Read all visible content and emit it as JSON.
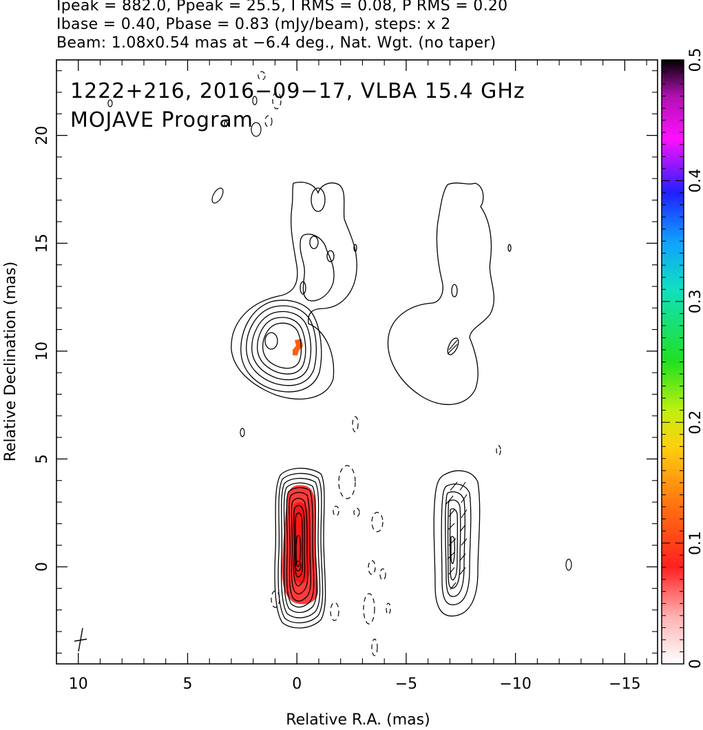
{
  "header": {
    "line1": "Ipeak = 882.0, Ppeak = 25.5, I RMS = 0.08, P RMS = 0.20",
    "line2": "Ibase = 0.40, Pbase = 0.83 (mJy/beam), steps: x 2",
    "line3": "Beam: 1.08x0.54 mas at −6.4 deg., Nat. Wgt. (no taper)"
  },
  "annotation": {
    "line1": "1222+216, 2016−09−17, VLBA 15.4 GHz",
    "line2": "MOJAVE Program"
  },
  "chart_data": {
    "type": "heatmap",
    "title": "",
    "xlabel": "Relative R.A. (mas)",
    "ylabel": "Relative Declination (mas)",
    "xlim": [
      11,
      -16.5
    ],
    "ylim": [
      -4.5,
      23.5
    ],
    "x_ticks": [
      10,
      5,
      0,
      -5,
      -10,
      -15
    ],
    "x_tick_labels": [
      "10",
      "5",
      "0",
      "−5",
      "−10",
      "−15"
    ],
    "y_ticks": [
      0,
      5,
      10,
      15,
      20
    ],
    "y_tick_labels": [
      "0",
      "5",
      "10",
      "15",
      "20"
    ],
    "colorbar": {
      "range": [
        0,
        0.5
      ],
      "ticks": [
        0,
        0.1,
        0.2,
        0.3,
        0.4,
        0.5
      ],
      "tick_labels": [
        "0",
        "0.1",
        "0.2",
        "0.3",
        "0.4",
        "0.5"
      ],
      "colormap": [
        "#ffffff",
        "#ffb0b0",
        "#ff2020",
        "#ff7010",
        "#ffd010",
        "#c0f010",
        "#20e020",
        "#10e0c0",
        "#10a0ff",
        "#2020ff",
        "#ff10ff",
        "#b010b0",
        "#000000"
      ]
    },
    "core_polarization": [
      {
        "ra": 0.0,
        "dec": 0.8,
        "level": 0.07
      },
      {
        "ra": 0.1,
        "dec": 3.0,
        "level": 0.06
      }
    ],
    "knot_polarization": [
      {
        "ra": -0.05,
        "dec": 10.3,
        "level": 0.12
      }
    ],
    "gridlines": false
  }
}
